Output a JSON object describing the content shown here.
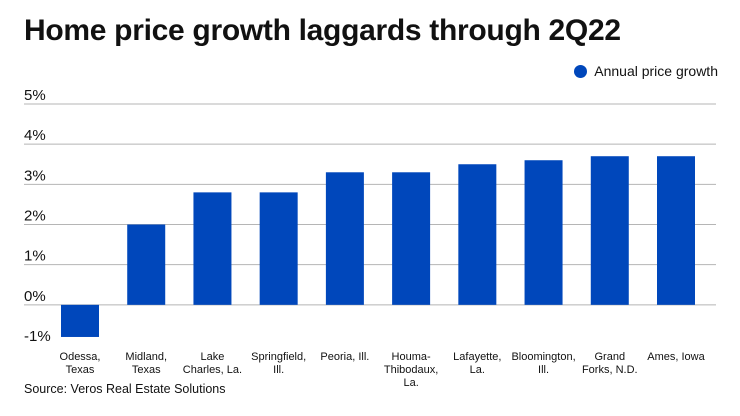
{
  "chart_data": {
    "type": "bar",
    "title": "Home price growth laggards through 2Q22",
    "categories": [
      "Odessa, Texas",
      "Midland, Texas",
      "Lake Charles, La.",
      "Springfield, Ill.",
      "Peoria, Ill.",
      "Houma-Thibodaux, La.",
      "Lafayette, La.",
      "Bloomington, Ill.",
      "Grand Forks, N.D.",
      "Ames, Iowa"
    ],
    "category_label_lines": [
      [
        "Odessa,",
        "Texas"
      ],
      [
        "Midland,",
        "Texas"
      ],
      [
        "Lake",
        "Charles, La."
      ],
      [
        "Springfield,",
        "Ill."
      ],
      [
        "Peoria, Ill."
      ],
      [
        "Houma-",
        "Thibodaux,",
        "La."
      ],
      [
        "Lafayette,",
        "La."
      ],
      [
        "Bloomington,",
        "Ill."
      ],
      [
        "Grand",
        "Forks, N.D."
      ],
      [
        "Ames, Iowa"
      ]
    ],
    "series": [
      {
        "name": "Annual price growth",
        "values": [
          -0.8,
          2.0,
          2.8,
          2.8,
          3.3,
          3.3,
          3.5,
          3.6,
          3.7,
          3.7
        ],
        "color": "#0047bb"
      }
    ],
    "ylim": [
      -1,
      5
    ],
    "yticks": [
      5,
      4,
      3,
      2,
      1,
      0,
      -1
    ],
    "ytick_labels": [
      "5%",
      "4%",
      "3%",
      "2%",
      "1%",
      "0%",
      "-1%"
    ],
    "xlabel": "",
    "ylabel": "",
    "legend_position": "top-right",
    "grid": true
  },
  "source": "Source: Veros Real Estate Solutions"
}
